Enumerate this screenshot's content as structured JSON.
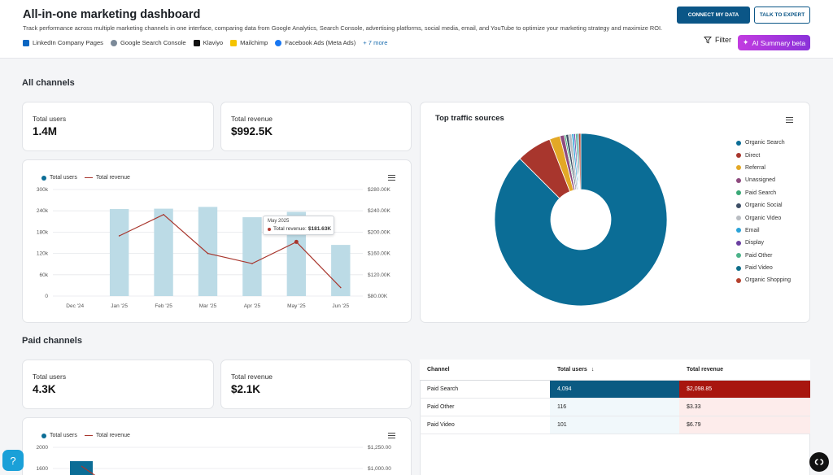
{
  "header": {
    "title": "All-in-one marketing dashboard",
    "subtitle": "Track performance across multiple marketing channels in one interface, comparing data from Google Analytics, Search Console, advertising platforms, social media, email, and YouTube to optimize your marketing strategy and maximize ROI.",
    "sources": [
      {
        "label": "LinkedIn Company Pages",
        "icon": "linkedin-icon",
        "color": "#0a66c2"
      },
      {
        "label": "Google Search Console",
        "icon": "google-search-console-icon",
        "color": "#7c8a99"
      },
      {
        "label": "Klaviyo",
        "icon": "klaviyo-icon",
        "color": "#111111"
      },
      {
        "label": "Mailchimp",
        "icon": "mailchimp-icon",
        "color": "#f5c400"
      },
      {
        "label": "Facebook Ads (Meta Ads)",
        "icon": "facebook-icon",
        "color": "#1877f2"
      }
    ],
    "more_label": "+ 7 more",
    "connect_label": "CONNECT MY DATA",
    "expert_label": "TALK TO EXPERT",
    "filter_label": "Filter",
    "ai_label": "AI Summary beta"
  },
  "all_channels": {
    "section_title": "All channels",
    "kpis": [
      {
        "label": "Total users",
        "value": "1.4M"
      },
      {
        "label": "Total revenue",
        "value": "$992.5K"
      }
    ]
  },
  "paid_channels": {
    "section_title": "Paid channels",
    "kpis": [
      {
        "label": "Total users",
        "value": "4.3K"
      },
      {
        "label": "Total revenue",
        "value": "$2.1K"
      }
    ]
  },
  "chart_legend": {
    "users": "Total users",
    "revenue": "Total revenue"
  },
  "tooltip": {
    "date": "May 2025",
    "label": "Total revenue:",
    "value": "$181.63K"
  },
  "pie_title": "Top traffic sources",
  "colors": {
    "primary": "#0b6d96",
    "revenue_line": "#a8362d",
    "bar": "#bcdbe6",
    "accent_button": "#0b5687"
  },
  "table": {
    "headers": [
      "Channel",
      "Total users",
      "Total revenue"
    ],
    "rows": [
      {
        "channel": "Paid Search",
        "users": "4,094",
        "revenue": "$2,098.85"
      },
      {
        "channel": "Paid Other",
        "users": "116",
        "revenue": "$3.33"
      },
      {
        "channel": "Paid Video",
        "users": "101",
        "revenue": "$6.79"
      }
    ]
  },
  "chart_data": [
    {
      "type": "bar",
      "categories": [
        "Dec '24",
        "Jan '25",
        "Feb '25",
        "Mar '25",
        "Apr '25",
        "May '25",
        "Jun '25"
      ],
      "series": [
        {
          "name": "Total users",
          "type": "bar",
          "values": [
            0,
            245000,
            246000,
            251000,
            222000,
            237000,
            144000
          ]
        },
        {
          "name": "Total revenue",
          "type": "line",
          "values": [
            null,
            193000,
            233000,
            160000,
            141000,
            181630,
            96000
          ]
        }
      ],
      "yticks_left": [
        "0",
        "60k",
        "120k",
        "180k",
        "240k",
        "300k"
      ],
      "yticks_right": [
        "$80.00K",
        "$120.00K",
        "$160.00K",
        "$200.00K",
        "$240.00K",
        "$280.00K"
      ],
      "ylim_left": [
        0,
        300000
      ],
      "ylim_right": [
        80000,
        280000
      ],
      "legend": "top-left"
    },
    {
      "type": "pie",
      "title": "Top traffic sources",
      "donut": true,
      "labels": [
        "Organic Search",
        "Direct",
        "Referral",
        "Unassigned",
        "Paid Search",
        "Organic Social",
        "Organic Video",
        "Email",
        "Display",
        "Paid Other",
        "Paid Video",
        "Organic Shopping"
      ],
      "values": [
        87.5,
        6.6,
        2.0,
        0.8,
        0.3,
        0.5,
        0.6,
        0.4,
        0.3,
        0.3,
        0.3,
        0.4
      ],
      "colors": [
        "#0b6d96",
        "#a8362d",
        "#e3a826",
        "#8e4a7e",
        "#3aa876",
        "#3d4f66",
        "#b9bdc2",
        "#2ba3d8",
        "#6a3fa0",
        "#4cb38a",
        "#0f6e8a",
        "#b5412e"
      ],
      "legend": "right"
    },
    {
      "type": "bar",
      "categories": [],
      "series": [
        {
          "name": "Total users",
          "type": "bar",
          "values": []
        },
        {
          "name": "Total revenue",
          "type": "line",
          "values": []
        }
      ],
      "yticks_left": [
        "2000",
        "1600"
      ],
      "yticks_right": [
        "$1,250.00",
        "$1,000.00"
      ],
      "legend": "top-left"
    }
  ]
}
